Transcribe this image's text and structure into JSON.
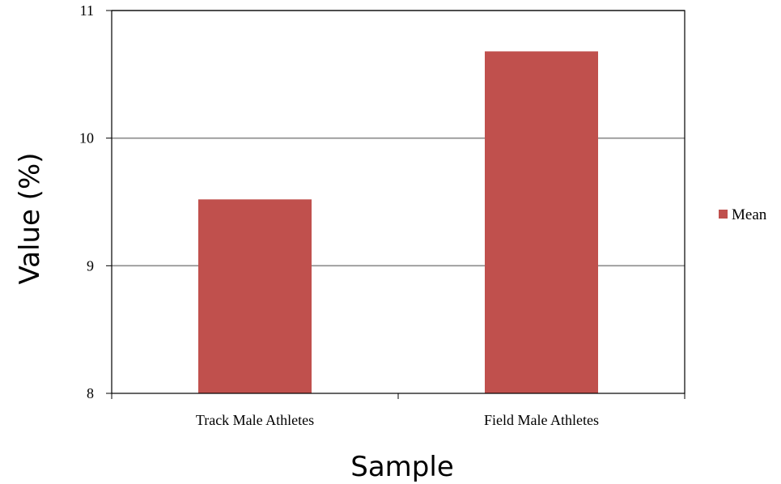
{
  "chart_data": {
    "type": "bar",
    "title": "",
    "xlabel": "Sample",
    "ylabel": "Value (%)",
    "categories": [
      "Track Male Athletes",
      "Field Male Athletes"
    ],
    "series": [
      {
        "name": "Mean",
        "values": [
          9.52,
          10.68
        ],
        "color": "#c0504d"
      }
    ],
    "ylim": [
      8,
      11
    ],
    "yticks": [
      "8",
      "9",
      "10",
      "11"
    ],
    "grid": true,
    "legend": "right"
  }
}
